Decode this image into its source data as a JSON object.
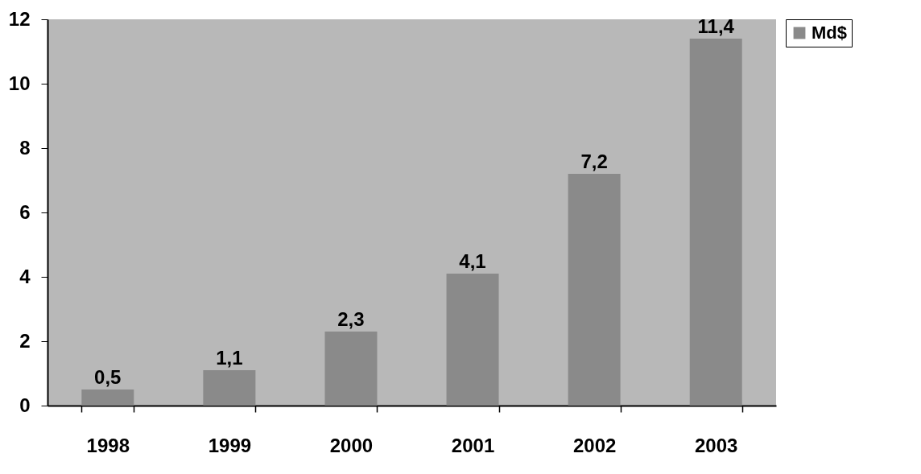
{
  "chart_data": {
    "type": "bar",
    "categories": [
      "1998",
      "1999",
      "2000",
      "2001",
      "2002",
      "2003"
    ],
    "series": [
      {
        "name": "Md$",
        "color": "#8a8a8a",
        "values": [
          0.5,
          1.1,
          2.3,
          4.1,
          7.2,
          11.4
        ]
      }
    ],
    "value_labels": [
      "0,5",
      "1,1",
      "2,3",
      "4,1",
      "7,2",
      "11,4"
    ],
    "ylim": [
      0,
      12
    ],
    "yticks": [
      0,
      2,
      4,
      6,
      8,
      10,
      12
    ],
    "grid": false,
    "legend": "right"
  }
}
